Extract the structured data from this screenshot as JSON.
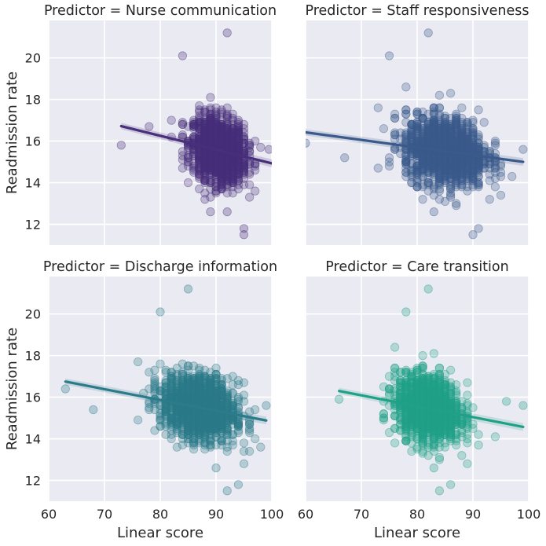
{
  "chart_data": {
    "type": "scatter",
    "layout": "2x2 facet grid, shared x and y axes",
    "xlabel": "Linear score",
    "ylabel": "Readmission rate",
    "xlim": [
      60,
      100
    ],
    "ylim": [
      11,
      21.8
    ],
    "xticks": [
      "60",
      "70",
      "80",
      "90",
      "100"
    ],
    "yticks": [
      "12",
      "14",
      "16",
      "18",
      "20"
    ],
    "grid": true,
    "background": "#eaeaf2",
    "panels": [
      {
        "title": "Predictor = Nurse communication",
        "color": "#482f7b",
        "x_center": 90.5,
        "x_spread": 2.3,
        "x_range": [
          73,
          100
        ],
        "y_center": 15.4,
        "y_spread": 0.75,
        "regression": {
          "x": [
            73,
            100
          ],
          "y": [
            16.72,
            14.93
          ]
        },
        "outliers": [
          {
            "x": 92,
            "y": 21.2
          },
          {
            "x": 84,
            "y": 20.1
          },
          {
            "x": 73,
            "y": 15.8
          },
          {
            "x": 95,
            "y": 11.5
          },
          {
            "x": 95,
            "y": 11.8
          },
          {
            "x": 92,
            "y": 12.6
          },
          {
            "x": 99.5,
            "y": 15.6
          },
          {
            "x": 78,
            "y": 16.7
          }
        ]
      },
      {
        "title": "Predictor = Staff responsiveness",
        "color": "#3b5a8c",
        "x_center": 85,
        "x_spread": 3.6,
        "x_range": [
          60,
          99
        ],
        "y_center": 15.4,
        "y_spread": 0.8,
        "regression": {
          "x": [
            60,
            99
          ],
          "y": [
            16.42,
            15.0
          ]
        },
        "outliers": [
          {
            "x": 82,
            "y": 21.2
          },
          {
            "x": 75,
            "y": 20.1
          },
          {
            "x": 60,
            "y": 15.9
          },
          {
            "x": 90,
            "y": 11.5
          },
          {
            "x": 91,
            "y": 11.8
          },
          {
            "x": 83,
            "y": 12.6
          },
          {
            "x": 99,
            "y": 15.6
          },
          {
            "x": 67,
            "y": 15.2
          }
        ]
      },
      {
        "title": "Predictor = Discharge information",
        "color": "#2b7b8a",
        "x_center": 87,
        "x_spread": 3.3,
        "x_range": [
          63,
          100
        ],
        "y_center": 15.4,
        "y_spread": 0.75,
        "regression": {
          "x": [
            63,
            99
          ],
          "y": [
            16.75,
            14.88
          ]
        },
        "outliers": [
          {
            "x": 85,
            "y": 21.2
          },
          {
            "x": 80,
            "y": 20.1
          },
          {
            "x": 63,
            "y": 16.4
          },
          {
            "x": 92,
            "y": 11.5
          },
          {
            "x": 94,
            "y": 11.8
          },
          {
            "x": 90,
            "y": 12.6
          },
          {
            "x": 99,
            "y": 15.6
          },
          {
            "x": 68,
            "y": 15.4
          }
        ]
      },
      {
        "title": "Predictor = Care transition",
        "color": "#21a088",
        "x_center": 82,
        "x_spread": 2.8,
        "x_range": [
          66,
          99
        ],
        "y_center": 15.4,
        "y_spread": 0.75,
        "regression": {
          "x": [
            66,
            99
          ],
          "y": [
            16.3,
            14.57
          ]
        },
        "outliers": [
          {
            "x": 82,
            "y": 21.2
          },
          {
            "x": 78,
            "y": 20.1
          },
          {
            "x": 66,
            "y": 15.9
          },
          {
            "x": 84,
            "y": 11.5
          },
          {
            "x": 86,
            "y": 11.8
          },
          {
            "x": 83,
            "y": 12.6
          },
          {
            "x": 99,
            "y": 15.6
          },
          {
            "x": 96,
            "y": 15.8
          }
        ]
      }
    ]
  }
}
